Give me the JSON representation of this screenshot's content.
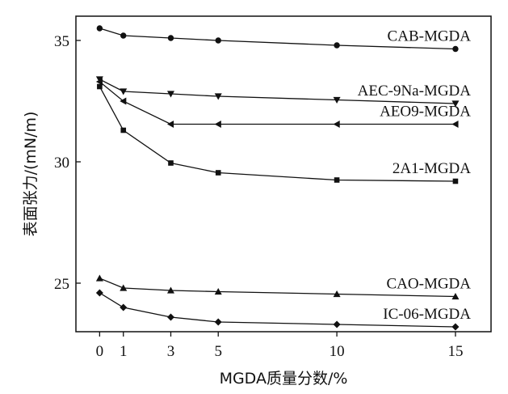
{
  "chart_data": {
    "type": "line",
    "xlabel": "MGDA质量分数/%",
    "ylabel": "表面张力/(mN/m)",
    "xlim": [
      -1,
      16.5
    ],
    "ylim": [
      23,
      36
    ],
    "x_ticks": [
      "0",
      "1",
      "3",
      "5",
      "10",
      "15"
    ],
    "y_ticks": [
      "25",
      "30",
      "35"
    ],
    "grid": false,
    "series": [
      {
        "name": "CAB-MGDA",
        "marker": "circle",
        "x": [
          0,
          1,
          3,
          5,
          10,
          15
        ],
        "y": [
          35.5,
          35.2,
          35.1,
          35.0,
          34.8,
          34.65
        ]
      },
      {
        "name": "AEC-9Na-MGDA",
        "marker": "triangle-down",
        "x": [
          0,
          1,
          3,
          5,
          10,
          15
        ],
        "y": [
          33.4,
          32.9,
          32.8,
          32.7,
          32.55,
          32.4
        ]
      },
      {
        "name": "AEO9-MGDA",
        "marker": "triangle-left",
        "x": [
          0,
          1,
          3,
          5,
          10,
          15
        ],
        "y": [
          33.3,
          32.5,
          31.55,
          31.55,
          31.55,
          31.55
        ]
      },
      {
        "name": "2A1-MGDA",
        "marker": "square",
        "x": [
          0,
          1,
          3,
          5,
          10,
          15
        ],
        "y": [
          33.1,
          31.3,
          29.95,
          29.55,
          29.25,
          29.2
        ]
      },
      {
        "name": "CAO-MGDA",
        "marker": "triangle-up",
        "x": [
          0,
          1,
          3,
          5,
          10,
          15
        ],
        "y": [
          25.2,
          24.8,
          24.7,
          24.65,
          24.55,
          24.45
        ]
      },
      {
        "name": "IC-06-MGDA",
        "marker": "diamond",
        "x": [
          0,
          1,
          3,
          5,
          10,
          15
        ],
        "y": [
          24.6,
          24.0,
          23.6,
          23.4,
          23.3,
          23.2
        ]
      }
    ]
  }
}
